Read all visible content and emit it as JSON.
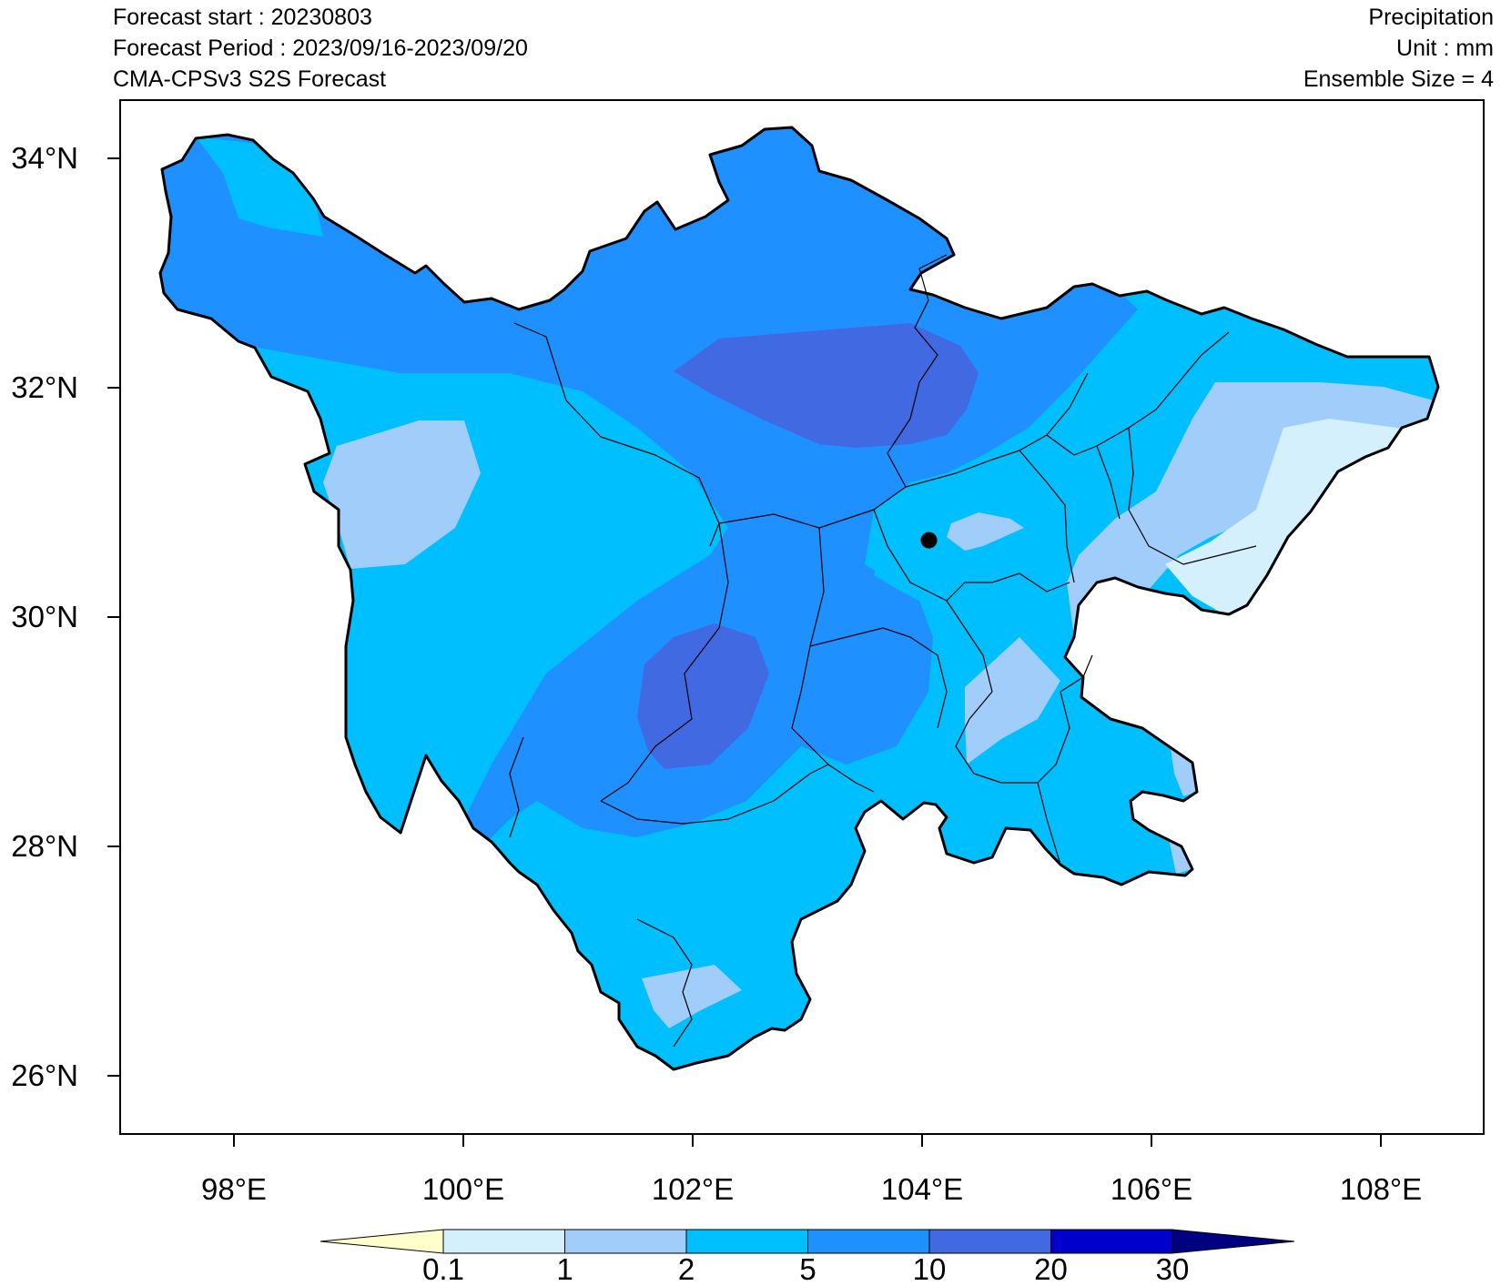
{
  "header": {
    "left": [
      "Forecast start : 20230803",
      "Forecast Period : 2023/09/16-2023/09/20",
      "CMA-CPSv3 S2S Forecast"
    ],
    "right": [
      "Precipitation",
      "Unit : mm",
      "Ensemble Size = 4"
    ]
  },
  "map": {
    "lon_range": [
      97,
      109
    ],
    "lat_range": [
      25.5,
      34.6
    ],
    "lon_ticks": [
      "98°E",
      "100°E",
      "102°E",
      "104°E",
      "106°E",
      "108°E"
    ],
    "lat_ticks": [
      "34°N",
      "32°N",
      "30°N",
      "28°N",
      "26°N"
    ],
    "marker": {
      "lon": 104.06,
      "lat": 30.67
    }
  },
  "legend": {
    "labels": [
      "0.1",
      "1",
      "2",
      "5",
      "10",
      "20",
      "30"
    ],
    "colors": [
      "#ffffcc",
      "#d4f0fc",
      "#a0cdfa",
      "#00bfff",
      "#1e90ff",
      "#4169e1",
      "#0000cd",
      "#000080"
    ]
  }
}
